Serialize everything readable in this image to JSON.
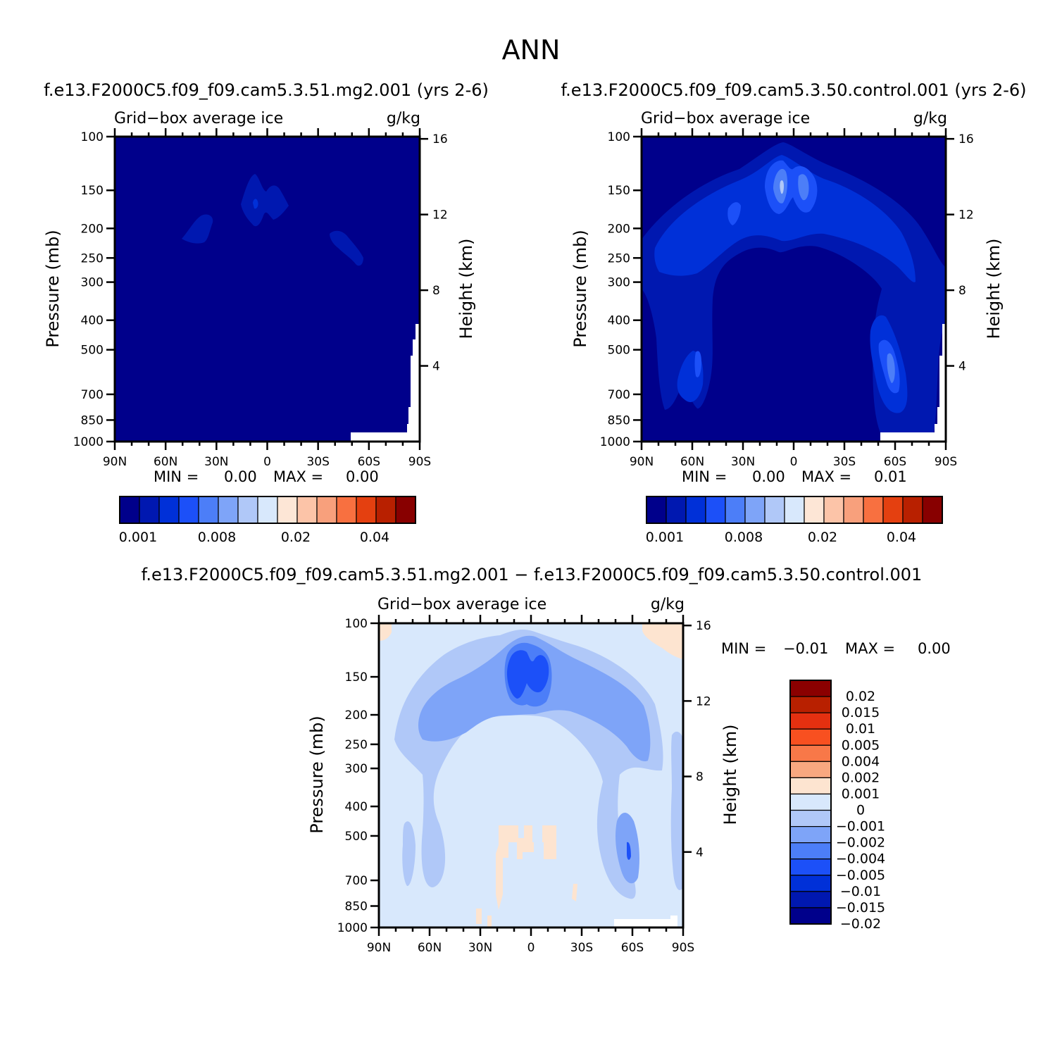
{
  "page": {
    "title": "ANN"
  },
  "chart_data": [
    {
      "type": "heatmap",
      "panel": "top-left",
      "title": "f.e13.F2000C5.f09_f09.cam5.3.51.mg2.001 (yrs 2-6)",
      "subtitle_left": "Grid−box average ice",
      "subtitle_right": "g/kg",
      "xlabel": "",
      "ylabel": "Pressure (mb)",
      "y2label": "Height (km)",
      "x_ticks": [
        "90N",
        "60N",
        "30N",
        "0",
        "30S",
        "60S",
        "90S"
      ],
      "y_ticks": [
        "100",
        "150",
        "200",
        "250",
        "300",
        "400",
        "500",
        "700",
        "850",
        "1000"
      ],
      "y2_ticks": [
        "16",
        "12",
        "8",
        "4"
      ],
      "min_label": "MIN =",
      "min_value": "0.00",
      "max_label": "MAX =",
      "max_value": "0.00",
      "colorbar": {
        "orientation": "horizontal",
        "colors": [
          "#00008b",
          "#0018b0",
          "#0030d8",
          "#1c50f8",
          "#4c7ef8",
          "#7ea4f8",
          "#b0c8f8",
          "#d8e8fc",
          "#fde6d6",
          "#fcc4a8",
          "#f8a07c",
          "#f87040",
          "#e44010",
          "#b82000",
          "#880000"
        ],
        "tick_labels": [
          "0.001",
          "0.008",
          "0.02",
          "0.04"
        ]
      }
    },
    {
      "type": "heatmap",
      "panel": "top-right",
      "title": "f.e13.F2000C5.f09_f09.cam5.3.50.control.001 (yrs 2-6)",
      "subtitle_left": "Grid−box average ice",
      "subtitle_right": "g/kg",
      "xlabel": "",
      "ylabel": "Pressure (mb)",
      "y2label": "Height (km)",
      "x_ticks": [
        "90N",
        "60N",
        "30N",
        "0",
        "30S",
        "60S",
        "90S"
      ],
      "y_ticks": [
        "100",
        "150",
        "200",
        "250",
        "300",
        "400",
        "500",
        "700",
        "850",
        "1000"
      ],
      "y2_ticks": [
        "16",
        "12",
        "8",
        "4"
      ],
      "min_label": "MIN =",
      "min_value": "0.00",
      "max_label": "MAX =",
      "max_value": "0.01",
      "colorbar": {
        "orientation": "horizontal",
        "colors": [
          "#00008b",
          "#0018b0",
          "#0030d8",
          "#1c50f8",
          "#4c7ef8",
          "#7ea4f8",
          "#b0c8f8",
          "#d8e8fc",
          "#fde6d6",
          "#fcc4a8",
          "#f8a07c",
          "#f87040",
          "#e44010",
          "#b82000",
          "#880000"
        ],
        "tick_labels": [
          "0.001",
          "0.008",
          "0.02",
          "0.04"
        ]
      }
    },
    {
      "type": "heatmap",
      "panel": "bottom",
      "title": "f.e13.F2000C5.f09_f09.cam5.3.51.mg2.001 − f.e13.F2000C5.f09_f09.cam5.3.50.control.001",
      "subtitle_left": "Grid−box average ice",
      "subtitle_right": "g/kg",
      "xlabel": "",
      "ylabel": "Pressure (mb)",
      "y2label": "Height (km)",
      "x_ticks": [
        "90N",
        "60N",
        "30N",
        "0",
        "30S",
        "60S",
        "90S"
      ],
      "y_ticks": [
        "100",
        "150",
        "200",
        "250",
        "300",
        "400",
        "500",
        "700",
        "850",
        "1000"
      ],
      "y2_ticks": [
        "16",
        "12",
        "8",
        "4"
      ],
      "min_label": "MIN =",
      "min_value": "−0.01",
      "max_label": "MAX =",
      "max_value": "0.00",
      "colorbar": {
        "orientation": "vertical",
        "colors_top_to_bottom": [
          "#8b0000",
          "#b82000",
          "#e43010",
          "#f85020",
          "#f87848",
          "#f8a880",
          "#fde4d0",
          "#d8e8fc",
          "#b0c8f8",
          "#7ea4f8",
          "#4c7ef8",
          "#1c50f8",
          "#0030d8",
          "#0018b0",
          "#00008b"
        ],
        "level_labels": [
          "0.02",
          "0.015",
          "0.01",
          "0.005",
          "0.004",
          "0.002",
          "0.001",
          "0",
          "−0.001",
          "−0.002",
          "−0.004",
          "−0.005",
          "−0.01",
          "−0.015",
          "−0.02"
        ]
      }
    }
  ]
}
